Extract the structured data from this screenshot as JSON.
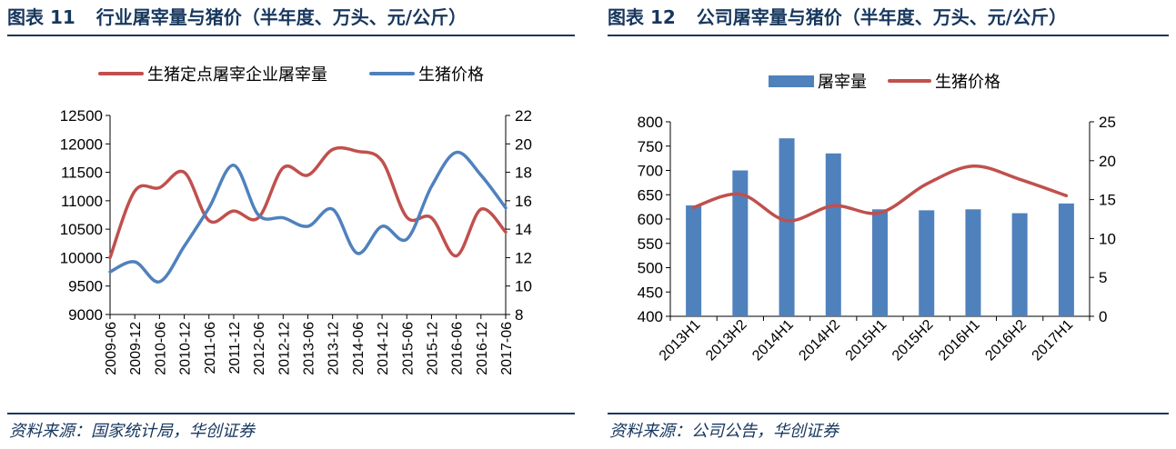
{
  "charts": [
    {
      "figure_label": "图表",
      "figure_number": "11",
      "title": "行业屠宰量与猪价（半年度、万头、元/公斤）",
      "source": "资料来源：国家统计局，华创证券",
      "chart_data": {
        "type": "line",
        "categories": [
          "2009-06",
          "2009-12",
          "2010-06",
          "2010-12",
          "2011-06",
          "2011-12",
          "2012-06",
          "2012-12",
          "2013-06",
          "2013-12",
          "2014-06",
          "2014-12",
          "2015-06",
          "2015-12",
          "2016-06",
          "2016-12",
          "2017-06"
        ],
        "series": [
          {
            "name": "生猪定点屠宰企业屠宰量",
            "axis": "left",
            "color": "#c0504d",
            "values": [
              10000,
              11170,
              11230,
              11500,
              10650,
              10820,
              10700,
              11580,
              11450,
              11900,
              11870,
              11700,
              10710,
              10700,
              10030,
              10850,
              10450
            ]
          },
          {
            "name": "生猪价格",
            "axis": "right",
            "color": "#4f81bd",
            "values": [
              11.0,
              11.7,
              10.3,
              12.8,
              15.5,
              18.5,
              15.0,
              14.8,
              14.2,
              15.4,
              12.3,
              14.2,
              13.3,
              17.0,
              19.4,
              17.8,
              15.5
            ]
          }
        ],
        "y_left": {
          "min": 9000,
          "max": 12500,
          "ticks": [
            9000,
            9500,
            10000,
            10500,
            11000,
            11500,
            12000,
            12500
          ]
        },
        "y_right": {
          "min": 8,
          "max": 22,
          "ticks": [
            8,
            10,
            12,
            14,
            16,
            18,
            20,
            22
          ]
        },
        "legend_position": "top-center",
        "grid": false
      }
    },
    {
      "figure_label": "图表",
      "figure_number": "12",
      "title": "公司屠宰量与猪价（半年度、万头、元/公斤）",
      "source": "资料来源：公司公告，华创证券",
      "chart_data": {
        "type": "bar",
        "categories": [
          "2013H1",
          "2013H2",
          "2014H1",
          "2014H2",
          "2015H1",
          "2015H2",
          "2016H1",
          "2016H2",
          "2017H1"
        ],
        "series": [
          {
            "name": "屠宰量",
            "type": "bar",
            "axis": "left",
            "color": "#4f81bd",
            "values": [
              628,
              700,
              766,
              735,
              620,
              618,
              620,
              612,
              632
            ]
          },
          {
            "name": "生猪价格",
            "type": "line",
            "axis": "right",
            "color": "#c0504d",
            "values": [
              14.0,
              15.7,
              12.3,
              14.2,
              13.3,
              17.0,
              19.3,
              17.6,
              15.5
            ]
          }
        ],
        "y_left": {
          "min": 400,
          "max": 800,
          "ticks": [
            400,
            450,
            500,
            550,
            600,
            650,
            700,
            750,
            800
          ]
        },
        "y_right": {
          "min": 0,
          "max": 25,
          "ticks": [
            0,
            5,
            10,
            15,
            20,
            25
          ]
        },
        "legend_position": "top-center",
        "grid": false
      }
    }
  ]
}
